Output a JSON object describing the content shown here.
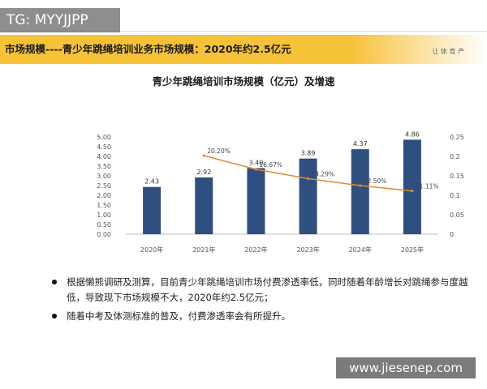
{
  "overlay_tag": "TG: MYYJJPP",
  "watermark_url": "www.jiesenep.com",
  "header": {
    "title": "市场规模----青少年跳绳培训业务市场规模：2020年约2.5亿元",
    "brand": "让 体 育 产"
  },
  "bullets": [
    "根据懒熊调研及测算，目前青少年跳绳培训市场付费渗透率低，同时随着年龄增长对跳绳参与度越低，导致现下市场规模不大，2020年约2.5亿元；",
    "随着中考及体测标准的普及，付费渗透率会有所提升。"
  ],
  "chart_data": {
    "type": "bar",
    "title": "青少年跳绳培训市场规模（亿元）及增速",
    "categories": [
      "2020年",
      "2021年",
      "2022年",
      "2023年",
      "2024年",
      "2025年"
    ],
    "series": [
      {
        "values": [
          2.43,
          2.92,
          3.4,
          3.89,
          4.37,
          4.86
        ],
        "labels": [
          "2.43",
          "2.92",
          "3.40",
          "3.89",
          "4.37",
          "4.86"
        ],
        "color": "#2e4f7f"
      },
      {
        "type": "line",
        "values": [
          null,
          0.202,
          0.1667,
          0.1429,
          0.125,
          0.1111
        ],
        "labels": [
          "",
          "20.20%",
          "16.67%",
          "14.29%",
          "12.50%",
          "11.11%"
        ],
        "color": "#e08a2b"
      }
    ],
    "y_left": {
      "min": 0,
      "max": 5,
      "ticks": [
        "0.00",
        "0.50",
        "1.00",
        "1.50",
        "2.00",
        "2.50",
        "3.00",
        "3.50",
        "4.00",
        "4.50",
        "5.00"
      ]
    },
    "y_right": {
      "min": 0,
      "max": 0.25,
      "ticks": [
        "0",
        "0.05",
        "0.1",
        "0.15",
        "0.2",
        "0.25"
      ]
    },
    "grid": false,
    "legend": "none"
  }
}
